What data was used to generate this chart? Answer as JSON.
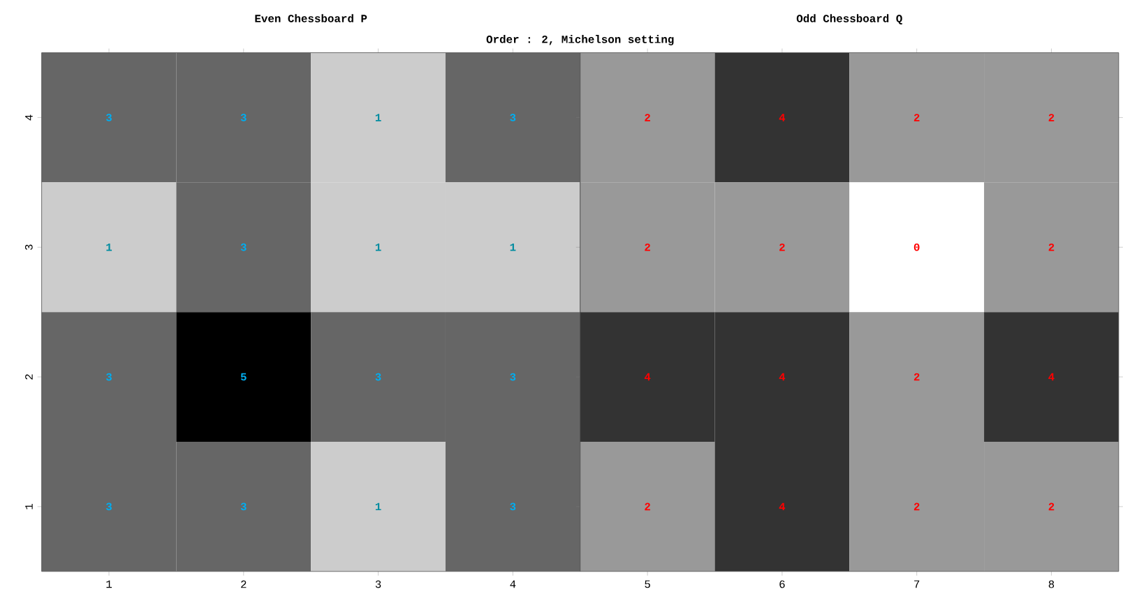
{
  "chart_data": [
    {
      "type": "heatmap",
      "title": "Even Chessboard P",
      "subtitle": "Order : 2, Michelson setting",
      "categories": [
        "1",
        "2",
        "3",
        "4"
      ],
      "y_categories": [
        "4",
        "3",
        "2",
        "1"
      ],
      "cells": [
        [
          3,
          3,
          1,
          3
        ],
        [
          1,
          3,
          1,
          1
        ],
        [
          3,
          5,
          3,
          3
        ],
        [
          3,
          3,
          1,
          3
        ]
      ],
      "data_labels": true
    },
    {
      "type": "heatmap",
      "title": "Odd Chessboard  Q",
      "categories": [
        "5",
        "6",
        "7",
        "8"
      ],
      "y_categories": [
        "4",
        "3",
        "2",
        "1"
      ],
      "cells": [
        [
          2,
          4,
          2,
          2
        ],
        [
          2,
          2,
          0,
          2
        ],
        [
          4,
          4,
          2,
          4
        ],
        [
          2,
          4,
          2,
          2
        ]
      ],
      "data_labels": true,
      "tick_labels": "x"
    }
  ]
}
